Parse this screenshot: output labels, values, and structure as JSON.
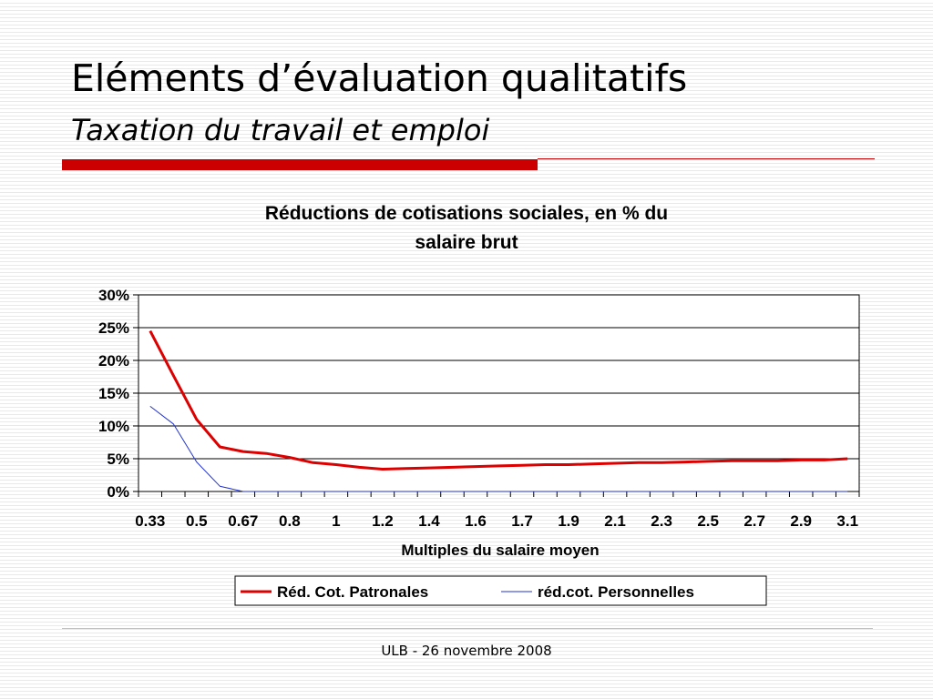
{
  "slide": {
    "title": "Eléments d’évaluation qualitatifs",
    "subtitle": "Taxation du travail et emploi",
    "footer": "ULB - 26 novembre 2008",
    "accent_color": "#cc0000"
  },
  "chart_data": {
    "type": "line",
    "title_lines": [
      "Réductions de cotisations sociales, en % du",
      "salaire brut"
    ],
    "xlabel": "Multiples du salaire moyen",
    "ylabel": "",
    "ylim": [
      0,
      0.3
    ],
    "yticks": [
      "0%",
      "5%",
      "10%",
      "15%",
      "20%",
      "25%",
      "30%"
    ],
    "x_tick_labels": [
      "0.33",
      "0.5",
      "0.67",
      "0.8",
      "1",
      "1.2",
      "1.4",
      "1.6",
      "1.7",
      "1.9",
      "2.1",
      "2.3",
      "2.5",
      "2.7",
      "2.9",
      "3.1"
    ],
    "x": [
      0.33,
      0.4,
      0.5,
      0.58,
      0.67,
      0.73,
      0.8,
      0.87,
      1,
      1.07,
      1.2,
      1.27,
      1.4,
      1.47,
      1.6,
      1.67,
      1.7,
      1.8,
      1.9,
      2,
      2.1,
      2.2,
      2.3,
      2.4,
      2.5,
      2.6,
      2.7,
      2.8,
      2.9,
      3,
      3.1
    ],
    "series": [
      {
        "name": "Réd. Cot. Patronales",
        "color": "#dd0000",
        "values": [
          0.245,
          0.177,
          0.11,
          0.068,
          0.061,
          0.058,
          0.052,
          0.044,
          0.041,
          0.037,
          0.034,
          0.035,
          0.036,
          0.037,
          0.038,
          0.039,
          0.04,
          0.041,
          0.041,
          0.042,
          0.043,
          0.044,
          0.044,
          0.045,
          0.046,
          0.047,
          0.047,
          0.047,
          0.048,
          0.048,
          0.05
        ]
      },
      {
        "name": "réd.cot. Personnelles",
        "color": "#2233cc",
        "values": [
          0.13,
          0.103,
          0.045,
          0.008,
          0,
          0,
          0,
          0,
          0,
          0,
          0,
          0,
          0,
          0,
          0,
          0,
          0,
          0,
          0,
          0,
          0,
          0,
          0,
          0,
          0,
          0,
          0,
          0,
          0,
          0,
          0
        ]
      }
    ],
    "grid": true,
    "legend_position": "bottom"
  }
}
